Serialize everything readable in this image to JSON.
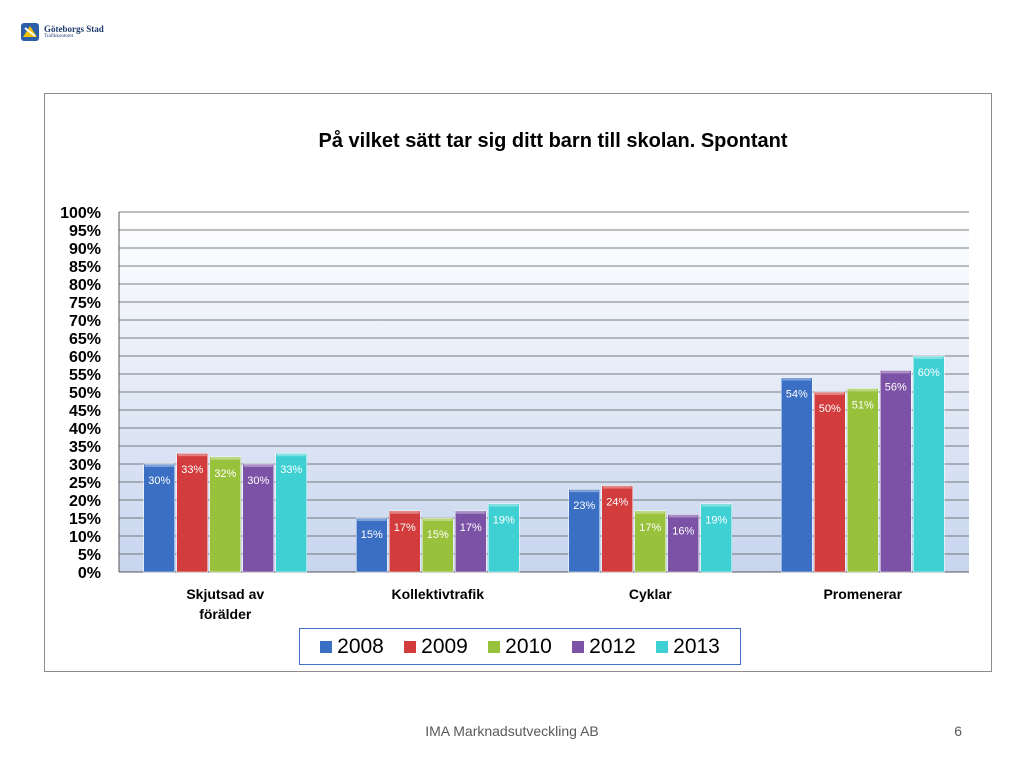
{
  "header": {
    "logo_name": "Göteborgs Stad",
    "logo_dept": "Trafikkontoret"
  },
  "footer": {
    "company": "IMA Marknadsutveckling AB",
    "slide_number": "6"
  },
  "colors": {
    "2008": "#3a6fc4",
    "2009": "#d23c3c",
    "2010": "#98c13c",
    "2012": "#7b52a6",
    "2013": "#3fd0d4",
    "plot_top": "#ffffff",
    "plot_bottom": "#c7d5ee"
  },
  "chart_data": {
    "type": "bar",
    "title": "På vilket sätt tar sig ditt barn till skolan. Spontant",
    "xlabel": "",
    "ylabel": "",
    "ylim": [
      0,
      100
    ],
    "y_tick_step": 5,
    "y_unit": "%",
    "grid": true,
    "legend_position": "bottom",
    "categories": [
      "Skjutsad av förälder",
      "Kollektivtrafik",
      "Cyklar",
      "Promenerar"
    ],
    "category_lines": [
      [
        "Skjutsad av",
        "förälder"
      ],
      [
        "Kollektivtrafik"
      ],
      [
        "Cyklar"
      ],
      [
        "Promenerar"
      ]
    ],
    "series": [
      {
        "name": "2008",
        "values": [
          30,
          15,
          23,
          54
        ]
      },
      {
        "name": "2009",
        "values": [
          33,
          17,
          24,
          50
        ]
      },
      {
        "name": "2010",
        "values": [
          32,
          15,
          17,
          51
        ]
      },
      {
        "name": "2012",
        "values": [
          30,
          17,
          16,
          56
        ]
      },
      {
        "name": "2013",
        "values": [
          33,
          19,
          19,
          60
        ]
      }
    ]
  }
}
